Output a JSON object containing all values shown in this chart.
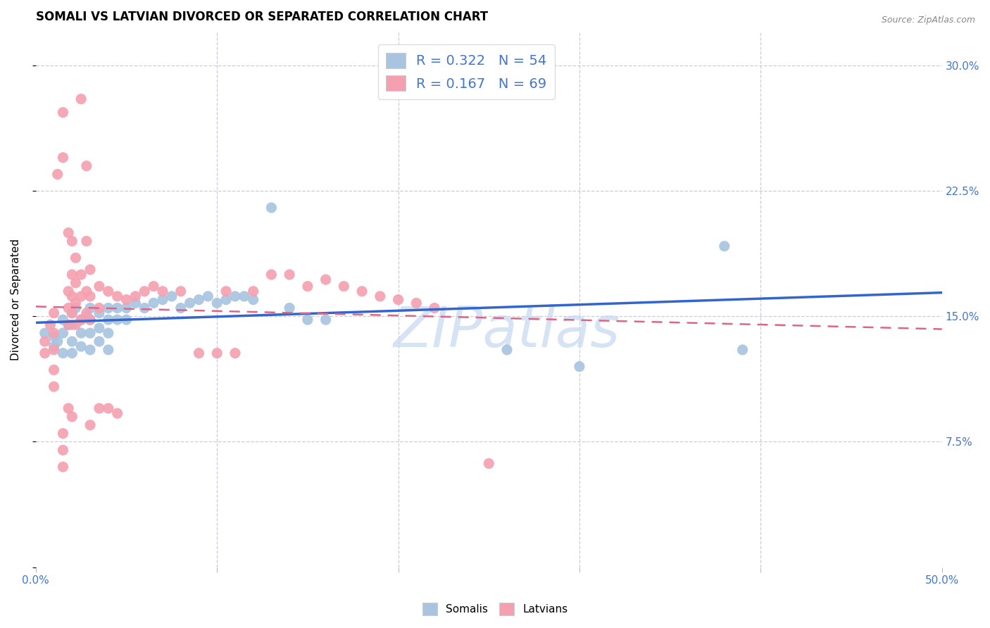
{
  "title": "SOMALI VS LATVIAN DIVORCED OR SEPARATED CORRELATION CHART",
  "source": "Source: ZipAtlas.com",
  "ylabel": "Divorced or Separated",
  "xlim": [
    0.0,
    0.5
  ],
  "ylim": [
    0.0,
    0.32
  ],
  "xticks": [
    0.0,
    0.1,
    0.2,
    0.3,
    0.4,
    0.5
  ],
  "xticklabels": [
    "0.0%",
    "",
    "",
    "",
    "",
    "50.0%"
  ],
  "yticks": [
    0.0,
    0.075,
    0.15,
    0.225,
    0.3
  ],
  "yticklabels": [
    "",
    "7.5%",
    "15.0%",
    "22.5%",
    "30.0%"
  ],
  "somali_color": "#a8c4e0",
  "latvian_color": "#f4a0b0",
  "somali_line_color": "#3366cc",
  "latvian_line_color": "#dd6688",
  "watermark_color": "#c5d8f0",
  "watermark": "ZIPatlas",
  "legend_R_somali": "0.322",
  "legend_N_somali": "54",
  "legend_R_latvian": "0.167",
  "legend_N_latvian": "69",
  "title_fontsize": 12,
  "axis_label_fontsize": 11,
  "tick_fontsize": 11,
  "tick_color": "#4477cc",
  "legend_fontsize": 14,
  "background_color": "#ffffff",
  "grid_color": "#ccccdd",
  "somali_points": [
    [
      0.005,
      0.14
    ],
    [
      0.01,
      0.138
    ],
    [
      0.01,
      0.132
    ],
    [
      0.012,
      0.135
    ],
    [
      0.015,
      0.148
    ],
    [
      0.015,
      0.14
    ],
    [
      0.015,
      0.128
    ],
    [
      0.018,
      0.145
    ],
    [
      0.02,
      0.152
    ],
    [
      0.02,
      0.145
    ],
    [
      0.02,
      0.135
    ],
    [
      0.02,
      0.128
    ],
    [
      0.022,
      0.155
    ],
    [
      0.025,
      0.148
    ],
    [
      0.025,
      0.14
    ],
    [
      0.025,
      0.132
    ],
    [
      0.028,
      0.15
    ],
    [
      0.03,
      0.155
    ],
    [
      0.03,
      0.148
    ],
    [
      0.03,
      0.14
    ],
    [
      0.03,
      0.13
    ],
    [
      0.035,
      0.152
    ],
    [
      0.035,
      0.143
    ],
    [
      0.035,
      0.135
    ],
    [
      0.04,
      0.155
    ],
    [
      0.04,
      0.148
    ],
    [
      0.04,
      0.14
    ],
    [
      0.04,
      0.13
    ],
    [
      0.045,
      0.155
    ],
    [
      0.045,
      0.148
    ],
    [
      0.05,
      0.155
    ],
    [
      0.05,
      0.148
    ],
    [
      0.055,
      0.158
    ],
    [
      0.06,
      0.155
    ],
    [
      0.065,
      0.158
    ],
    [
      0.07,
      0.16
    ],
    [
      0.075,
      0.162
    ],
    [
      0.08,
      0.155
    ],
    [
      0.085,
      0.158
    ],
    [
      0.09,
      0.16
    ],
    [
      0.095,
      0.162
    ],
    [
      0.1,
      0.158
    ],
    [
      0.105,
      0.16
    ],
    [
      0.11,
      0.162
    ],
    [
      0.115,
      0.162
    ],
    [
      0.12,
      0.16
    ],
    [
      0.13,
      0.215
    ],
    [
      0.14,
      0.155
    ],
    [
      0.15,
      0.148
    ],
    [
      0.16,
      0.148
    ],
    [
      0.26,
      0.13
    ],
    [
      0.3,
      0.12
    ],
    [
      0.38,
      0.192
    ],
    [
      0.39,
      0.13
    ]
  ],
  "latvian_points": [
    [
      0.005,
      0.135
    ],
    [
      0.005,
      0.128
    ],
    [
      0.008,
      0.145
    ],
    [
      0.01,
      0.152
    ],
    [
      0.01,
      0.14
    ],
    [
      0.01,
      0.13
    ],
    [
      0.01,
      0.118
    ],
    [
      0.01,
      0.108
    ],
    [
      0.012,
      0.235
    ],
    [
      0.015,
      0.272
    ],
    [
      0.015,
      0.245
    ],
    [
      0.015,
      0.08
    ],
    [
      0.015,
      0.07
    ],
    [
      0.015,
      0.06
    ],
    [
      0.018,
      0.2
    ],
    [
      0.018,
      0.165
    ],
    [
      0.018,
      0.155
    ],
    [
      0.018,
      0.145
    ],
    [
      0.018,
      0.095
    ],
    [
      0.02,
      0.195
    ],
    [
      0.02,
      0.175
    ],
    [
      0.02,
      0.162
    ],
    [
      0.02,
      0.152
    ],
    [
      0.02,
      0.09
    ],
    [
      0.022,
      0.185
    ],
    [
      0.022,
      0.17
    ],
    [
      0.022,
      0.158
    ],
    [
      0.022,
      0.145
    ],
    [
      0.025,
      0.175
    ],
    [
      0.025,
      0.162
    ],
    [
      0.025,
      0.148
    ],
    [
      0.025,
      0.28
    ],
    [
      0.028,
      0.24
    ],
    [
      0.028,
      0.195
    ],
    [
      0.028,
      0.165
    ],
    [
      0.028,
      0.152
    ],
    [
      0.03,
      0.178
    ],
    [
      0.03,
      0.162
    ],
    [
      0.03,
      0.148
    ],
    [
      0.03,
      0.085
    ],
    [
      0.035,
      0.168
    ],
    [
      0.035,
      0.155
    ],
    [
      0.035,
      0.095
    ],
    [
      0.04,
      0.165
    ],
    [
      0.04,
      0.095
    ],
    [
      0.045,
      0.162
    ],
    [
      0.045,
      0.092
    ],
    [
      0.05,
      0.16
    ],
    [
      0.055,
      0.162
    ],
    [
      0.06,
      0.165
    ],
    [
      0.065,
      0.168
    ],
    [
      0.07,
      0.165
    ],
    [
      0.08,
      0.165
    ],
    [
      0.09,
      0.128
    ],
    [
      0.1,
      0.128
    ],
    [
      0.105,
      0.165
    ],
    [
      0.11,
      0.128
    ],
    [
      0.12,
      0.165
    ],
    [
      0.13,
      0.175
    ],
    [
      0.14,
      0.175
    ],
    [
      0.15,
      0.168
    ],
    [
      0.16,
      0.172
    ],
    [
      0.17,
      0.168
    ],
    [
      0.18,
      0.165
    ],
    [
      0.19,
      0.162
    ],
    [
      0.2,
      0.16
    ],
    [
      0.21,
      0.158
    ],
    [
      0.22,
      0.155
    ],
    [
      0.25,
      0.062
    ]
  ]
}
